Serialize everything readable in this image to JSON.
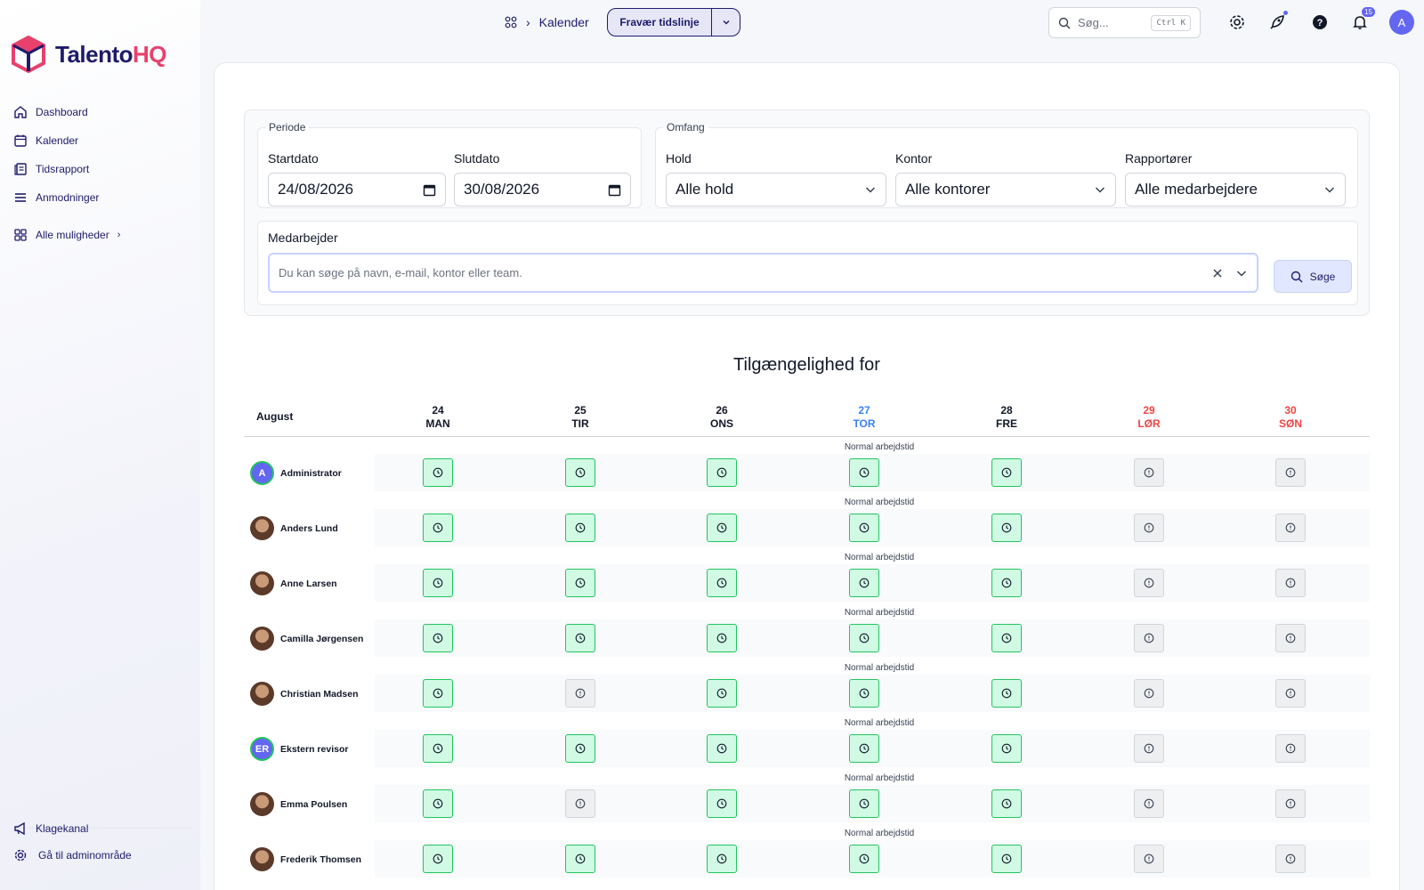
{
  "brand": {
    "name_main": "Talento",
    "name_accent": "HQ"
  },
  "sidebar": {
    "items": [
      {
        "label": "Dashboard",
        "icon": "home-icon"
      },
      {
        "label": "Kalender",
        "icon": "calendar-icon"
      },
      {
        "label": "Tidsrapport",
        "icon": "report-icon"
      },
      {
        "label": "Anmodninger",
        "icon": "list-icon"
      }
    ],
    "all_options": "Alle muligheder",
    "bottom": [
      {
        "label": "Klagekanal",
        "icon": "megaphone-icon"
      },
      {
        "label": "Gå til adminområde",
        "icon": "gear-icon"
      }
    ]
  },
  "topbar": {
    "breadcrumb": "Kalender",
    "view_label": "Fravær tidslinje",
    "search_placeholder": "Søg...",
    "search_shortcut": "Ctrl K",
    "notification_count": "15",
    "user_initial": "A"
  },
  "filters": {
    "period_legend": "Periode",
    "start_label": "Startdato",
    "start_value": "24/08/2026",
    "end_label": "Slutdato",
    "end_value": "30/08/2026",
    "scope_legend": "Omfang",
    "team_label": "Hold",
    "team_value": "Alle hold",
    "office_label": "Kontor",
    "office_value": "Alle kontorer",
    "reporters_label": "Rapportører",
    "reporters_value": "Alle medarbejdere",
    "employee_label": "Medarbejder",
    "employee_placeholder": "Du kan søge på navn, e-mail, kontor eller team.",
    "search_button": "Søge"
  },
  "availability": {
    "title": "Tilgængelighed for",
    "month": "August",
    "note": "Normal arbejdstid",
    "days": [
      {
        "num": "24",
        "name": "MAN",
        "kind": "normal"
      },
      {
        "num": "25",
        "name": "TIR",
        "kind": "normal"
      },
      {
        "num": "26",
        "name": "ONS",
        "kind": "normal"
      },
      {
        "num": "27",
        "name": "TOR",
        "kind": "today"
      },
      {
        "num": "28",
        "name": "FRE",
        "kind": "normal"
      },
      {
        "num": "29",
        "name": "LØR",
        "kind": "weekend"
      },
      {
        "num": "30",
        "name": "SØN",
        "kind": "weekend"
      }
    ],
    "employees": [
      {
        "name": "Administrator",
        "avatar": "A",
        "status": [
          "work",
          "work",
          "work",
          "work",
          "work",
          "off",
          "off"
        ]
      },
      {
        "name": "Anders Lund",
        "avatar": "",
        "status": [
          "work",
          "work",
          "work",
          "work",
          "work",
          "off",
          "off"
        ]
      },
      {
        "name": "Anne Larsen",
        "avatar": "",
        "status": [
          "work",
          "work",
          "work",
          "work",
          "work",
          "off",
          "off"
        ]
      },
      {
        "name": "Camilla Jørgensen",
        "avatar": "",
        "status": [
          "work",
          "work",
          "work",
          "work",
          "work",
          "off",
          "off"
        ]
      },
      {
        "name": "Christian Madsen",
        "avatar": "",
        "status": [
          "work",
          "off",
          "work",
          "work",
          "work",
          "off",
          "off"
        ]
      },
      {
        "name": "Ekstern revisor",
        "avatar": "ER",
        "status": [
          "work",
          "work",
          "work",
          "work",
          "work",
          "off",
          "off"
        ]
      },
      {
        "name": "Emma Poulsen",
        "avatar": "",
        "status": [
          "work",
          "off",
          "work",
          "work",
          "work",
          "off",
          "off"
        ]
      },
      {
        "name": "Frederik Thomsen",
        "avatar": "",
        "status": [
          "work",
          "work",
          "work",
          "work",
          "work",
          "off",
          "off"
        ]
      }
    ]
  }
}
